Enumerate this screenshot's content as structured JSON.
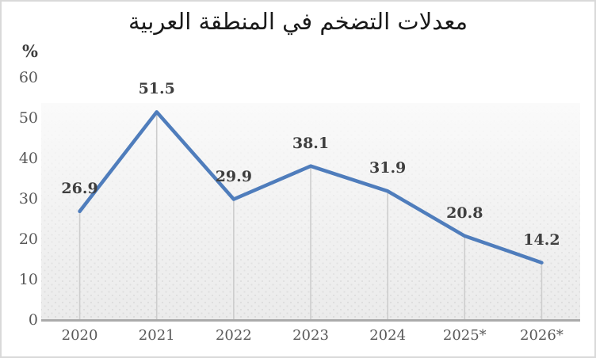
{
  "window": {
    "background": "#ffffff",
    "frame_color": "#d9d9d9"
  },
  "chart_data": {
    "type": "line",
    "title": "معدلات التضخم في المنطقة العربية",
    "y_unit": "%",
    "categories": [
      "2020",
      "2021",
      "2022",
      "2023",
      "2024",
      "2025*",
      "2026*"
    ],
    "values": [
      26.9,
      51.5,
      29.9,
      38.1,
      31.9,
      20.8,
      14.2
    ],
    "data_labels": [
      "26.9",
      "51.5",
      "29.9",
      "38.1",
      "31.9",
      "20.8",
      "14.2"
    ],
    "ylim": [
      0,
      60
    ],
    "yticks": [
      0,
      10,
      20,
      30,
      40,
      50,
      60
    ],
    "grid": "vertical-drop-lines",
    "legend": "none",
    "colors": {
      "line": "#4f7dbc",
      "drop_line": "#cdcdcd",
      "axis": "#ababab",
      "tick_label": "#595959",
      "data_label": "#3f3f3f",
      "title": "#1a1a1a"
    }
  }
}
